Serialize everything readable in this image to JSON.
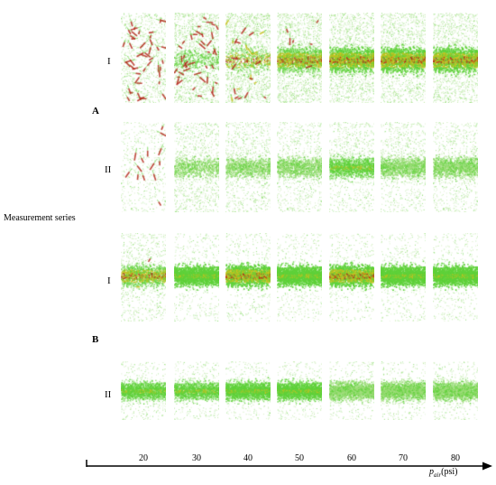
{
  "figure": {
    "group_a": "A",
    "group_b": "B",
    "side_label": "Measurement series",
    "row_labels": [
      "I",
      "II",
      "I",
      "II"
    ],
    "x_ticks": [
      "20",
      "30",
      "40",
      "50",
      "60",
      "70",
      "80"
    ],
    "axis_label_var": "p",
    "axis_label_sub": "air",
    "axis_label_unit": "(psi)"
  },
  "colors": {
    "green_light": "#9fdc7a",
    "green": "#5fd13a",
    "yellow": "#c9c11f",
    "red": "#b3281a"
  }
}
